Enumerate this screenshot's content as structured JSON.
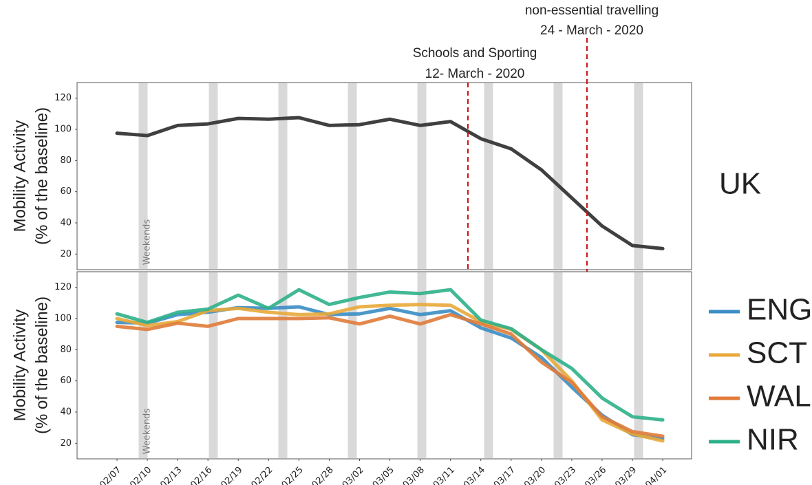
{
  "chart_data": [
    {
      "type": "line",
      "title": "UK",
      "y_label": [
        "Mobility Activity",
        "(% of the baseline)"
      ],
      "band_label": "Weekends",
      "annotations": [
        {
          "lines": [
            "Schools and Sporting",
            "12- March - 2020"
          ],
          "color": "#cc1111"
        },
        {
          "lines": [
            "non-essential travelling",
            "24 - March - 2020"
          ],
          "color": "#cc1111"
        }
      ],
      "categories": [
        "02/07",
        "02/10",
        "02/13",
        "02/16",
        "02/19",
        "02/22",
        "02/25",
        "02/28",
        "03/02",
        "03/05",
        "03/08",
        "03/11",
        "03/14",
        "03/17",
        "03/20",
        "03/23",
        "03/26",
        "03/29",
        "04/01"
      ],
      "series": [
        {
          "name": "UK",
          "color": "#404040",
          "values": [
            97.5,
            96,
            102.5,
            103.5,
            107,
            106.5,
            107.5,
            102.5,
            103,
            106.5,
            102.5,
            105,
            94,
            87.5,
            74,
            56,
            38,
            25.5,
            23.5
          ]
        }
      ],
      "ylim": [
        10,
        130
      ],
      "yticks": [
        20,
        40,
        60,
        80,
        100,
        120
      ]
    },
    {
      "type": "line",
      "y_label": [
        "Mobility Activity",
        "(% of the baseline)"
      ],
      "band_label": "Weekends",
      "categories": [
        "02/07",
        "02/10",
        "02/13",
        "02/16",
        "02/19",
        "02/22",
        "02/25",
        "02/28",
        "03/02",
        "03/05",
        "03/08",
        "03/11",
        "03/14",
        "03/17",
        "03/20",
        "03/23",
        "03/26",
        "03/29",
        "04/01"
      ],
      "series": [
        {
          "name": "ENG",
          "color": "#3a8dc4",
          "values": [
            97.5,
            97,
            102.5,
            104,
            107,
            106.5,
            107.5,
            102.5,
            103,
            106.5,
            102.5,
            105,
            94,
            87.5,
            75,
            56,
            38,
            25.5,
            23
          ]
        },
        {
          "name": "SCT",
          "color": "#e8a838",
          "values": [
            100,
            95.5,
            98,
            105,
            106.5,
            104,
            102.5,
            103,
            107.5,
            108.5,
            109,
            108.5,
            98,
            93,
            80,
            60,
            35,
            26,
            21.5
          ]
        },
        {
          "name": "WAL",
          "color": "#e07b39",
          "values": [
            95,
            93,
            97,
            95,
            100,
            100,
            100,
            100.5,
            96.5,
            101.5,
            96.5,
            102.5,
            96.5,
            90,
            72,
            59,
            37,
            27.5,
            24.5
          ]
        },
        {
          "name": "NIR",
          "color": "#2eb08a",
          "values": [
            103,
            97.5,
            104,
            106,
            115,
            106.5,
            118.5,
            109,
            113.5,
            117,
            116,
            118.5,
            99,
            93.5,
            80,
            68,
            49,
            37,
            35
          ]
        }
      ],
      "ylim": [
        10,
        130
      ],
      "yticks": [
        20,
        40,
        60,
        80,
        100,
        120
      ]
    }
  ]
}
